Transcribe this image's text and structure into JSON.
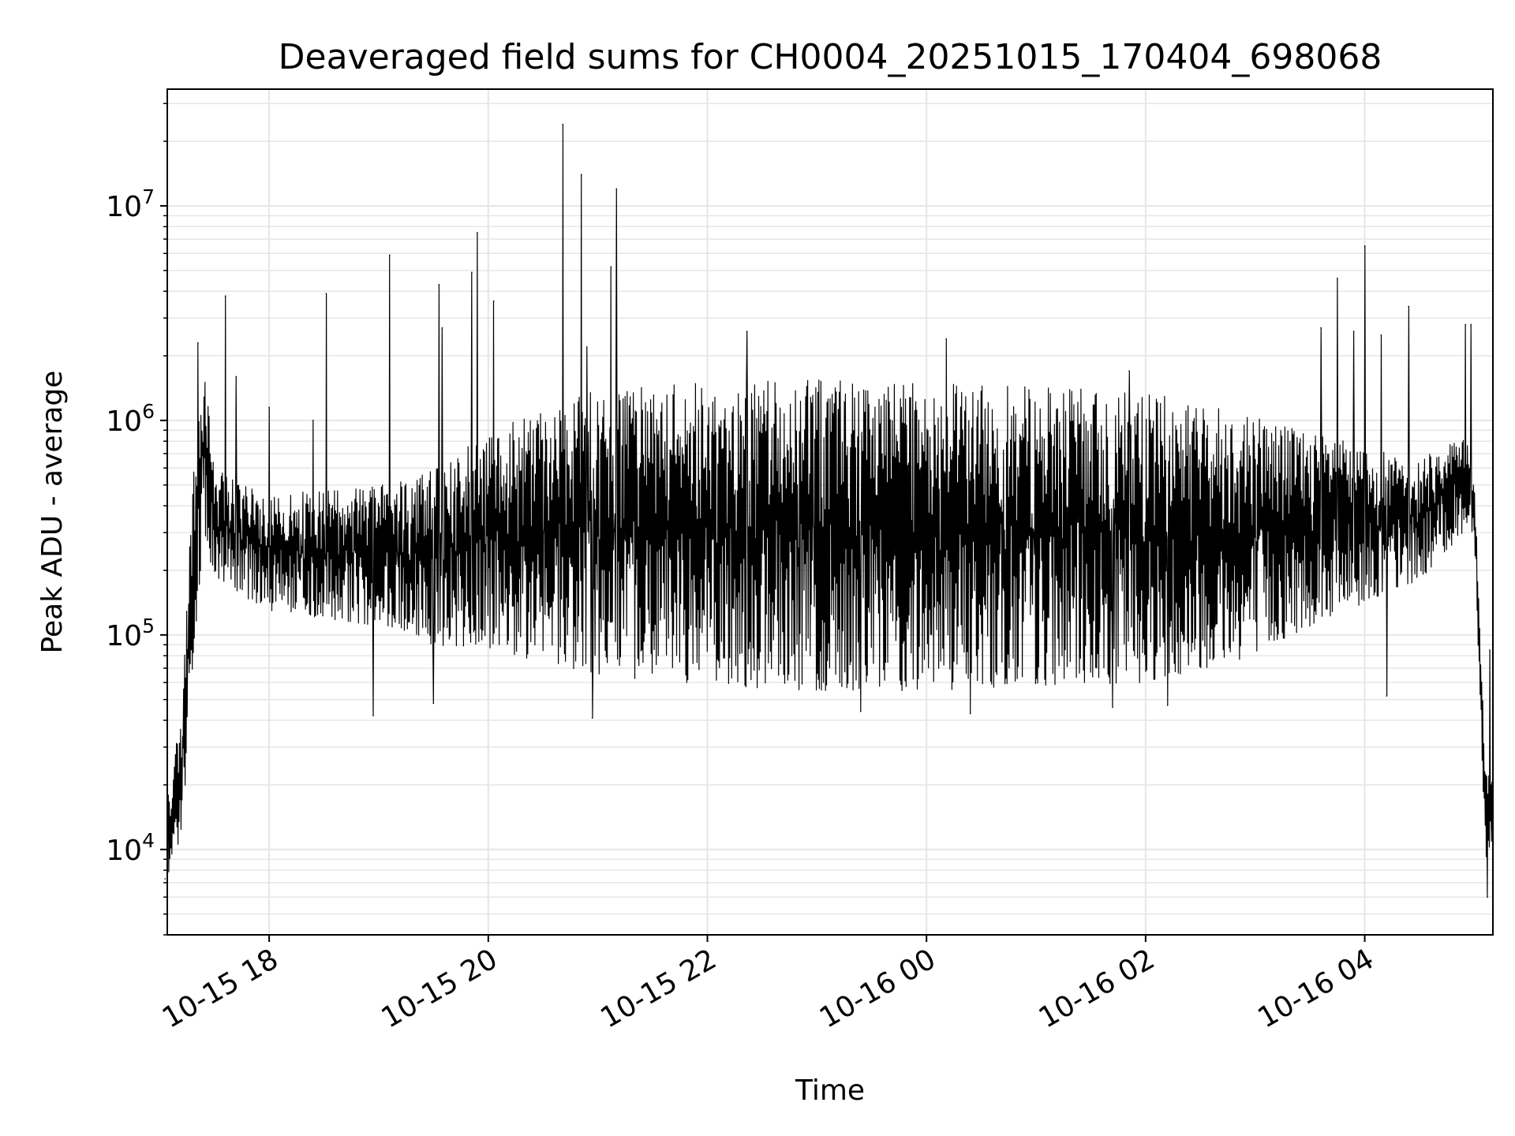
{
  "chart_data": {
    "type": "line",
    "title": "Deaveraged field sums for CH0004_20251015_170404_698068",
    "xlabel": "Time",
    "ylabel": "Peak ADU - average",
    "yscale": "log",
    "ylim": [
      4000,
      35000000
    ],
    "xlim_hours": [
      17.07,
      29.17
    ],
    "grid": true,
    "line_color": "#000000",
    "grid_color": "#e6e6e6",
    "x_ticks": [
      {
        "hour": 18,
        "label": "10-15 18"
      },
      {
        "hour": 20,
        "label": "10-15 20"
      },
      {
        "hour": 22,
        "label": "10-15 22"
      },
      {
        "hour": 24,
        "label": "10-16 00"
      },
      {
        "hour": 26,
        "label": "10-16 02"
      },
      {
        "hour": 28,
        "label": "10-16 04"
      }
    ],
    "y_ticks": [
      {
        "value": 10000,
        "base": "10",
        "exp": "4"
      },
      {
        "value": 100000,
        "base": "10",
        "exp": "5"
      },
      {
        "value": 1000000,
        "base": "10",
        "exp": "6"
      },
      {
        "value": 10000000,
        "base": "10",
        "exp": "7"
      }
    ],
    "envelope": [
      {
        "hour": 17.07,
        "low": 7500,
        "high": 20000
      },
      {
        "hour": 17.2,
        "low": 11000,
        "high": 40000
      },
      {
        "hour": 17.3,
        "low": 60000,
        "high": 500000
      },
      {
        "hour": 17.4,
        "low": 300000,
        "high": 2000000
      },
      {
        "hour": 17.5,
        "low": 180000,
        "high": 600000
      },
      {
        "hour": 18.0,
        "low": 130000,
        "high": 450000
      },
      {
        "hour": 19.0,
        "low": 110000,
        "high": 500000
      },
      {
        "hour": 19.5,
        "low": 90000,
        "high": 600000
      },
      {
        "hour": 20.0,
        "low": 85000,
        "high": 900000
      },
      {
        "hour": 20.5,
        "low": 75000,
        "high": 1200000
      },
      {
        "hour": 21.0,
        "low": 65000,
        "high": 1400000
      },
      {
        "hour": 22.0,
        "low": 58000,
        "high": 1500000
      },
      {
        "hour": 23.0,
        "low": 55000,
        "high": 1550000
      },
      {
        "hour": 24.0,
        "low": 55000,
        "high": 1500000
      },
      {
        "hour": 25.0,
        "low": 58000,
        "high": 1450000
      },
      {
        "hour": 26.0,
        "low": 60000,
        "high": 1350000
      },
      {
        "hour": 27.0,
        "low": 80000,
        "high": 1100000
      },
      {
        "hour": 27.5,
        "low": 110000,
        "high": 900000
      },
      {
        "hour": 28.0,
        "low": 140000,
        "high": 750000
      },
      {
        "hour": 28.5,
        "low": 180000,
        "high": 650000
      },
      {
        "hour": 28.9,
        "low": 300000,
        "high": 900000
      },
      {
        "hour": 29.0,
        "low": 300000,
        "high": 600000
      },
      {
        "hour": 29.1,
        "low": 9000,
        "high": 25000
      },
      {
        "hour": 29.17,
        "low": 11000,
        "high": 20000
      }
    ],
    "spikes": [
      {
        "hour": 17.35,
        "value": 2300000
      },
      {
        "hour": 17.6,
        "value": 3800000
      },
      {
        "hour": 17.7,
        "value": 1600000
      },
      {
        "hour": 18.0,
        "value": 1150000
      },
      {
        "hour": 18.4,
        "value": 1000000
      },
      {
        "hour": 18.52,
        "value": 3900000
      },
      {
        "hour": 19.1,
        "value": 5900000
      },
      {
        "hour": 19.55,
        "value": 4300000
      },
      {
        "hour": 19.58,
        "value": 2700000
      },
      {
        "hour": 19.85,
        "value": 4900000
      },
      {
        "hour": 19.9,
        "value": 7500000
      },
      {
        "hour": 20.05,
        "value": 3600000
      },
      {
        "hour": 20.68,
        "value": 24000000
      },
      {
        "hour": 20.85,
        "value": 14000000
      },
      {
        "hour": 20.9,
        "value": 2200000
      },
      {
        "hour": 21.12,
        "value": 5200000
      },
      {
        "hour": 21.17,
        "value": 12000000
      },
      {
        "hour": 22.36,
        "value": 2600000
      },
      {
        "hour": 24.18,
        "value": 2400000
      },
      {
        "hour": 25.85,
        "value": 1700000
      },
      {
        "hour": 27.6,
        "value": 2700000
      },
      {
        "hour": 27.75,
        "value": 4600000
      },
      {
        "hour": 27.9,
        "value": 2600000
      },
      {
        "hour": 28.0,
        "value": 6500000
      },
      {
        "hour": 28.15,
        "value": 2500000
      },
      {
        "hour": 28.4,
        "value": 3400000
      },
      {
        "hour": 28.92,
        "value": 2800000
      },
      {
        "hour": 28.97,
        "value": 2800000
      }
    ],
    "dips": [
      {
        "hour": 17.05,
        "value": 7300
      },
      {
        "hour": 18.95,
        "value": 42000
      },
      {
        "hour": 19.5,
        "value": 48000
      },
      {
        "hour": 20.95,
        "value": 41000
      },
      {
        "hour": 23.4,
        "value": 44000
      },
      {
        "hour": 24.4,
        "value": 43000
      },
      {
        "hour": 25.7,
        "value": 46000
      },
      {
        "hour": 26.2,
        "value": 47000
      },
      {
        "hour": 28.2,
        "value": 52000
      },
      {
        "hour": 29.12,
        "value": 6000
      },
      {
        "hour": 29.14,
        "value": 85000
      }
    ]
  }
}
